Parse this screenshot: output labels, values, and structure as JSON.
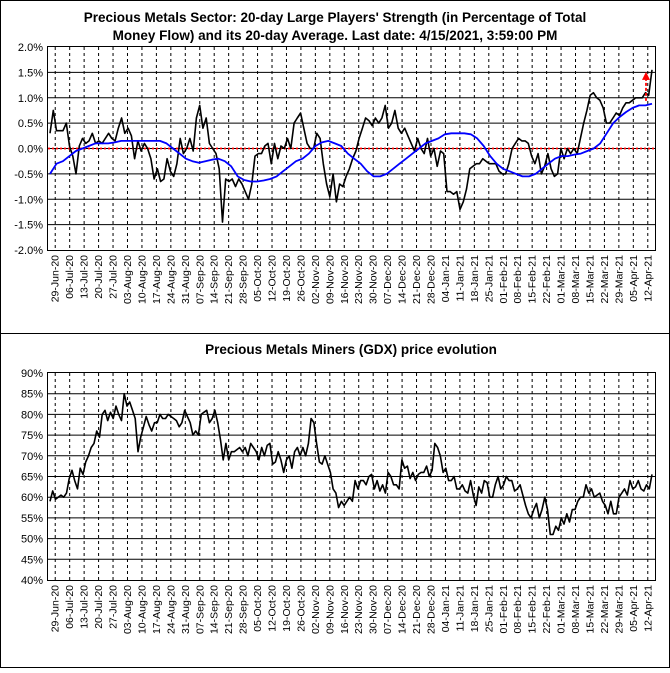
{
  "chart_data": [
    {
      "type": "line",
      "title_line1": "Precious Metals Sector: 20-day Large Players' Strength (in Percentage of Total",
      "title_line2": "Money Flow) and its 20-day Average. Last date: 4/15/2021, 3:59:00 PM",
      "yticks": [
        "2.0%",
        "1.5%",
        "1.0%",
        "0.5%",
        "0.0%",
        "-0.5%",
        "-1.0%",
        "-1.5%",
        "-2.0%"
      ],
      "ylim": [
        -2.0,
        2.0
      ],
      "xticks": [
        "29-Jun-20",
        "06-Jul-20",
        "13-Jul-20",
        "20-Jul-20",
        "27-Jul-20",
        "03-Aug-20",
        "10-Aug-20",
        "17-Aug-20",
        "24-Aug-20",
        "31-Aug-20",
        "07-Sep-20",
        "14-Sep-20",
        "21-Sep-20",
        "28-Sep-20",
        "05-Oct-20",
        "12-Oct-20",
        "19-Oct-20",
        "26-Oct-20",
        "02-Nov-20",
        "09-Nov-20",
        "16-Nov-20",
        "23-Nov-20",
        "30-Nov-20",
        "07-Dec-20",
        "14-Dec-20",
        "21-Dec-20",
        "28-Dec-20",
        "04-Jan-21",
        "11-Jan-21",
        "18-Jan-21",
        "25-Jan-21",
        "01-Feb-21",
        "08-Feb-21",
        "15-Feb-21",
        "22-Feb-21",
        "01-Mar-21",
        "08-Mar-21",
        "15-Mar-21",
        "22-Mar-21",
        "29-Mar-21",
        "05-Apr-21",
        "12-Apr-21"
      ],
      "zero_line_color": "#ff0000",
      "arrow_color": "#ff0000",
      "series": [
        {
          "color": "#000000",
          "values": [
            0.3,
            0.75,
            0.35,
            0.35,
            0.35,
            0.5,
            0.05,
            -0.15,
            -0.5,
            0.05,
            0.2,
            0.1,
            0.15,
            0.3,
            0.1,
            0.15,
            0.1,
            0.2,
            0.3,
            0.2,
            0.15,
            0.4,
            0.6,
            0.3,
            0.4,
            0.25,
            -0.2,
            0.15,
            -0.05,
            0.1,
            0.0,
            -0.2,
            -0.6,
            -0.4,
            -0.65,
            -0.6,
            -0.2,
            -0.45,
            -0.55,
            -0.3,
            0.2,
            -0.1,
            0.0,
            0.2,
            -0.05,
            0.6,
            0.85,
            0.4,
            0.6,
            0.1,
            0.0,
            -0.1,
            -0.4,
            -1.45,
            -0.6,
            -0.65,
            -0.6,
            -0.75,
            -0.6,
            -0.7,
            -0.85,
            -1.0,
            -0.7,
            -0.15,
            -0.1,
            -0.1,
            0.05,
            0.1,
            -0.3,
            0.1,
            -0.2,
            0.05,
            0.0,
            0.2,
            0.0,
            0.5,
            0.6,
            0.7,
            0.4,
            0.1,
            0.0,
            0.0,
            0.3,
            0.2,
            -0.3,
            -0.7,
            -0.95,
            -0.5,
            -1.05,
            -0.7,
            -0.75,
            -0.55,
            -0.4,
            -0.2,
            -0.05,
            0.2,
            0.4,
            0.6,
            0.55,
            0.45,
            0.6,
            0.5,
            0.6,
            0.85,
            0.4,
            0.5,
            0.75,
            0.4,
            0.3,
            0.4,
            0.25,
            0.1,
            -0.05,
            0.2,
            0.0,
            -0.1,
            0.2,
            -0.15,
            0.0,
            -0.35,
            -0.05,
            -0.1,
            -0.85,
            -0.85,
            -0.9,
            -0.85,
            -1.2,
            -1.05,
            -0.8,
            -0.4,
            -0.35,
            -0.3,
            -0.3,
            -0.2,
            -0.25,
            -0.3,
            -0.3,
            -0.3,
            -0.45,
            -0.5,
            -0.5,
            -0.3,
            0.0,
            0.1,
            0.2,
            0.15,
            0.15,
            0.1,
            -0.15,
            -0.3,
            -0.1,
            -0.5,
            -0.35,
            -0.1,
            -0.4,
            -0.55,
            -0.5,
            0.0,
            -0.2,
            0.0,
            -0.1,
            0.0,
            -0.1,
            0.2,
            0.5,
            0.75,
            1.05,
            1.1,
            1.0,
            0.95,
            0.8,
            0.5,
            0.5,
            0.6,
            0.7,
            0.65,
            0.8,
            0.9,
            0.9,
            0.95,
            1.0,
            1.0,
            1.0,
            1.1,
            1.05,
            1.55
          ]
        },
        {
          "color": "#0000ff",
          "values": [
            -0.5,
            -0.3,
            -0.25,
            -0.15,
            -0.05,
            0.0,
            0.05,
            0.1,
            0.1,
            0.1,
            0.12,
            0.15,
            0.15,
            0.15,
            0.15,
            0.15,
            0.15,
            0.15,
            0.1,
            0.0,
            -0.1,
            -0.2,
            -0.25,
            -0.28,
            -0.25,
            -0.22,
            -0.2,
            -0.25,
            -0.35,
            -0.55,
            -0.62,
            -0.65,
            -0.65,
            -0.63,
            -0.6,
            -0.55,
            -0.45,
            -0.35,
            -0.25,
            -0.2,
            -0.1,
            0.05,
            0.12,
            0.15,
            0.1,
            0.05,
            -0.1,
            -0.2,
            -0.3,
            -0.45,
            -0.55,
            -0.55,
            -0.5,
            -0.4,
            -0.3,
            -0.2,
            -0.1,
            0.0,
            0.1,
            0.15,
            0.2,
            0.28,
            0.3,
            0.3,
            0.3,
            0.28,
            0.2,
            0.05,
            -0.15,
            -0.3,
            -0.4,
            -0.45,
            -0.5,
            -0.55,
            -0.55,
            -0.5,
            -0.4,
            -0.3,
            -0.2,
            -0.15,
            -0.15,
            -0.12,
            -0.1,
            -0.05,
            0.0,
            0.1,
            0.3,
            0.5,
            0.62,
            0.72,
            0.8,
            0.85,
            0.85,
            0.88
          ]
        }
      ]
    },
    {
      "type": "line",
      "title": "Precious Metals Miners (GDX) price evolution",
      "yticks": [
        "90%",
        "85%",
        "80%",
        "75%",
        "70%",
        "65%",
        "60%",
        "55%",
        "50%",
        "45%",
        "40%"
      ],
      "ylim": [
        40,
        90
      ],
      "xticks": [
        "29-Jun-20",
        "06-Jul-20",
        "13-Jul-20",
        "20-Jul-20",
        "27-Jul-20",
        "03-Aug-20",
        "10-Aug-20",
        "17-Aug-20",
        "24-Aug-20",
        "31-Aug-20",
        "07-Sep-20",
        "14-Sep-20",
        "21-Sep-20",
        "28-Sep-20",
        "05-Oct-20",
        "12-Oct-20",
        "19-Oct-20",
        "26-Oct-20",
        "02-Nov-20",
        "09-Nov-20",
        "16-Nov-20",
        "23-Nov-20",
        "30-Nov-20",
        "07-Dec-20",
        "14-Dec-20",
        "21-Dec-20",
        "28-Dec-20",
        "04-Jan-21",
        "11-Jan-21",
        "18-Jan-21",
        "25-Jan-21",
        "01-Feb-21",
        "08-Feb-21",
        "15-Feb-21",
        "22-Feb-21",
        "01-Mar-21",
        "08-Mar-21",
        "15-Mar-21",
        "22-Mar-21",
        "29-Mar-21",
        "05-Apr-21",
        "12-Apr-21"
      ],
      "series": [
        {
          "color": "#000000",
          "values": [
            59,
            61.5,
            59.5,
            60,
            60.5,
            60,
            61,
            64.5,
            66.5,
            64,
            62,
            67,
            65.5,
            68.5,
            70,
            72,
            73,
            76,
            74.5,
            80,
            81,
            78.5,
            80.5,
            79,
            82,
            80,
            78.5,
            85,
            82,
            83,
            81,
            79,
            71,
            74.5,
            77,
            79.5,
            77.5,
            76,
            78,
            78,
            80,
            79,
            79,
            80,
            79.5,
            79,
            78.5,
            77,
            78,
            81,
            79.5,
            78,
            75,
            76,
            75,
            80,
            80.5,
            81,
            78,
            79,
            81,
            78,
            74,
            69,
            73,
            69,
            71,
            71,
            71.5,
            72,
            71,
            72,
            70,
            73,
            72,
            71,
            69,
            72,
            70,
            72.5,
            73,
            68,
            68.5,
            71,
            69,
            66,
            69,
            70,
            67,
            71,
            72,
            70,
            72,
            70,
            73,
            79,
            78,
            73,
            68.5,
            68,
            70,
            68,
            66,
            62,
            61,
            57.5,
            59,
            58,
            59,
            60,
            59,
            64,
            62,
            64,
            64,
            63,
            65,
            65.5,
            62,
            64,
            61.5,
            63,
            61,
            66,
            65,
            63,
            63,
            62,
            69,
            67,
            67.5,
            64.5,
            66,
            64,
            65.5,
            66,
            66,
            67.5,
            65,
            66.5,
            73,
            72,
            70,
            66,
            67,
            64,
            64,
            65,
            62,
            62,
            63,
            61.5,
            61,
            64,
            60.5,
            58,
            62.5,
            61,
            64,
            63.5,
            60,
            60,
            63,
            65,
            62,
            63,
            65,
            64,
            64,
            61.5,
            62,
            63,
            60.5,
            58,
            56,
            55,
            57,
            58.5,
            55,
            57,
            60,
            57,
            51,
            51,
            53,
            52,
            55,
            53.5,
            56,
            54,
            57,
            57,
            59,
            60,
            60,
            63,
            61,
            62,
            60,
            60.5,
            61,
            59,
            58,
            56,
            59,
            56,
            56,
            60,
            61,
            62,
            60.5,
            64,
            62,
            62.5,
            64,
            62,
            61.5,
            63,
            62,
            65.5
          ]
        }
      ]
    }
  ]
}
